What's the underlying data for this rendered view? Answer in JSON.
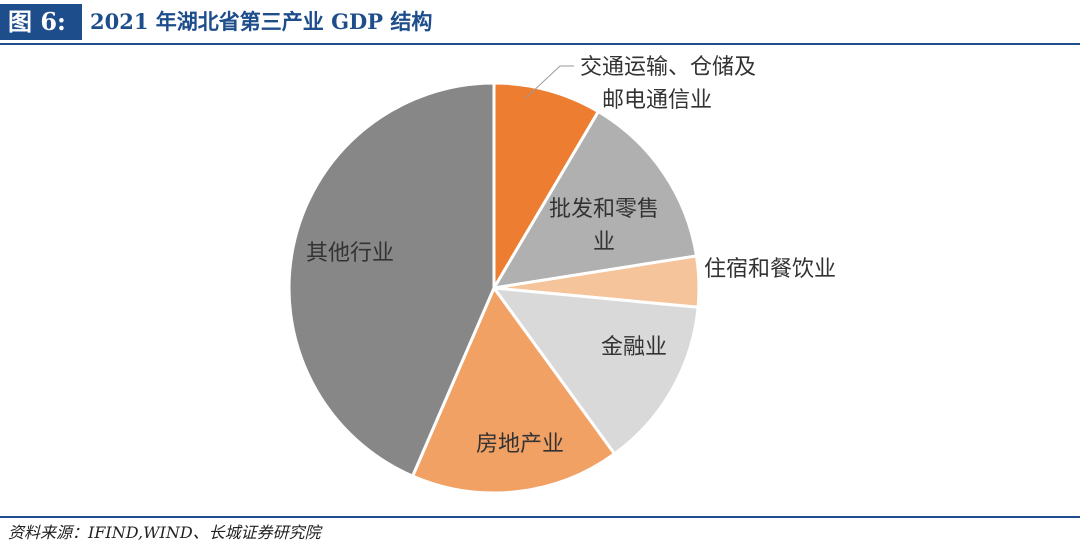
{
  "header": {
    "fig_label": "图 6:",
    "title": "2021 年湖北省第三产业 GDP 结构"
  },
  "chart_data": {
    "type": "pie",
    "title": "2021 年湖北省第三产业 GDP 结构",
    "start_angle_deg": 0,
    "direction": "clockwise",
    "slices": [
      {
        "label_lines": [
          "交通运输、仓储及",
          "邮电通信业"
        ],
        "value": 8.5,
        "color": "#ed7d31"
      },
      {
        "label_lines": [
          "批发和零售",
          "业"
        ],
        "value": 14.0,
        "color": "#b0b0b0"
      },
      {
        "label_lines": [
          "住宿和餐饮业"
        ],
        "value": 4.0,
        "color": "#f6c49a"
      },
      {
        "label_lines": [
          "金融业"
        ],
        "value": 13.5,
        "color": "#d9d9d9"
      },
      {
        "label_lines": [
          "房地产业"
        ],
        "value": 16.5,
        "color": "#f2a164"
      },
      {
        "label_lines": [
          "其他行业"
        ],
        "value": 43.5,
        "color": "#878787"
      }
    ]
  },
  "footer": {
    "source": "资料来源：IFIND,WIND、长城证券研究院"
  }
}
